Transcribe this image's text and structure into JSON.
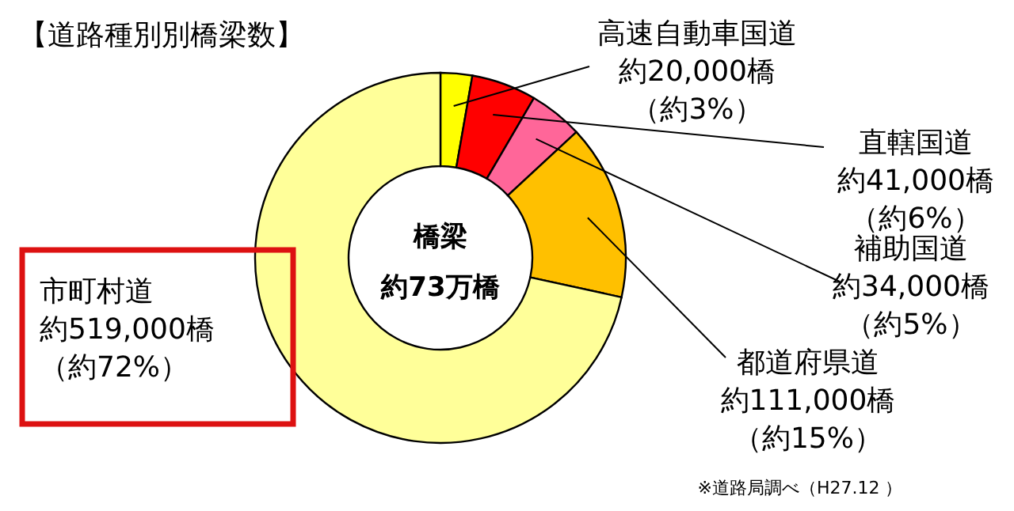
{
  "chart_data": {
    "type": "donut",
    "title": "【道路種別別橋梁数】",
    "categories": [
      "高速自動車国道",
      "直轄国道",
      "補助国道",
      "都道府県道",
      "市町村道"
    ],
    "values": [
      20000,
      41000,
      34000,
      111000,
      519000
    ],
    "colors": [
      "#ffff00",
      "#ff0000",
      "#ff6699",
      "#ffc000",
      "#ffff99"
    ],
    "value_labels": [
      "約20,000橋（約3%）",
      "約41,000橋（約6%）",
      "約34,000橋（約5%）",
      "約111,000橋（約15%）",
      "約519,000橋（約72%）"
    ],
    "annotations": [
      "橋梁",
      "約73万橋",
      "※道路局調べ（H27.12 ）"
    ]
  }
}
